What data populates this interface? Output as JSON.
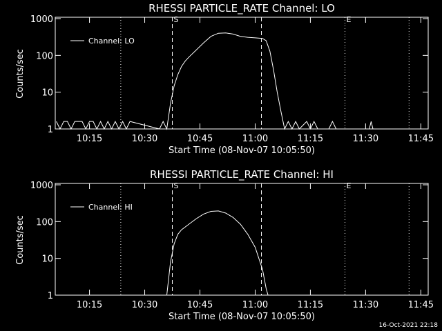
{
  "chart_data": [
    {
      "type": "line",
      "title": "RHESSI PARTICLE_RATE Channel: LO",
      "xlabel": "Start Time (08-Nov-07 10:05:50)",
      "ylabel": "Counts/sec",
      "log_y": true,
      "ylim": [
        1,
        1000
      ],
      "yticks": [
        1,
        10,
        100,
        1000
      ],
      "xlim": [
        605.7,
        707
      ],
      "xticks": [
        {
          "value": 615,
          "label": "10:15"
        },
        {
          "value": 630,
          "label": "10:30"
        },
        {
          "value": 645,
          "label": "10:45"
        },
        {
          "value": 660,
          "label": "11:00"
        },
        {
          "value": 675,
          "label": "11:15"
        },
        {
          "value": 690,
          "label": "11:30"
        },
        {
          "value": 705,
          "label": "11:45"
        }
      ],
      "vlines": [
        {
          "x": 623.5,
          "style": "dotted"
        },
        {
          "x": 637.5,
          "style": "dashed",
          "label": "S"
        },
        {
          "x": 661.7,
          "style": "dashed"
        },
        {
          "x": 684.4,
          "style": "dotted",
          "label": "E"
        },
        {
          "x": 701.8,
          "style": "dotted"
        }
      ],
      "legend": "upper left",
      "series": [
        {
          "name": "Channel: LO",
          "color": "#ffffff",
          "x": [
            606,
            607,
            608,
            609,
            610,
            611,
            612,
            613,
            614,
            615,
            616,
            617,
            618,
            619,
            620,
            621,
            622,
            623,
            624,
            625,
            626,
            634,
            635,
            636,
            637,
            638,
            639,
            640,
            641,
            642,
            644,
            646,
            648,
            650,
            652,
            654,
            656,
            658,
            660,
            662,
            663,
            664,
            665,
            666,
            667,
            668,
            669,
            670,
            671,
            672,
            674,
            675,
            676,
            677,
            679,
            680,
            681,
            682,
            691,
            691.5,
            692,
            706
          ],
          "values": [
            1.6,
            1,
            1.6,
            1.6,
            1,
            1.6,
            1.6,
            1.6,
            1,
            1.6,
            1.6,
            1,
            1.6,
            1,
            1.6,
            1,
            1.6,
            1,
            1.6,
            1,
            1.6,
            1,
            1.6,
            1,
            5,
            15,
            30,
            50,
            70,
            90,
            140,
            220,
            330,
            400,
            410,
            380,
            330,
            310,
            300,
            290,
            250,
            130,
            40,
            10,
            3,
            1,
            1.6,
            1,
            1.6,
            1,
            1.6,
            1,
            1.6,
            1,
            1,
            1,
            1.6,
            1,
            1,
            1.6,
            1,
            1
          ]
        }
      ]
    },
    {
      "type": "line",
      "title": "RHESSI PARTICLE_RATE Channel: HI",
      "xlabel": "Start Time (08-Nov-07 10:05:50)",
      "ylabel": "Counts/sec",
      "log_y": true,
      "ylim": [
        1,
        1000
      ],
      "yticks": [
        1,
        10,
        100,
        1000
      ],
      "xlim": [
        605.7,
        707
      ],
      "xticks": [
        {
          "value": 615,
          "label": "10:15"
        },
        {
          "value": 630,
          "label": "10:30"
        },
        {
          "value": 645,
          "label": "10:45"
        },
        {
          "value": 660,
          "label": "11:00"
        },
        {
          "value": 675,
          "label": "11:15"
        },
        {
          "value": 690,
          "label": "11:30"
        },
        {
          "value": 705,
          "label": "11:45"
        }
      ],
      "vlines": [
        {
          "x": 623.5,
          "style": "dotted"
        },
        {
          "x": 637.5,
          "style": "dashed",
          "label": "S"
        },
        {
          "x": 661.7,
          "style": "dashed"
        },
        {
          "x": 684.4,
          "style": "dotted",
          "label": "E"
        },
        {
          "x": 701.8,
          "style": "dotted"
        }
      ],
      "legend": "upper left",
      "series": [
        {
          "name": "Channel: HI",
          "color": "#ffffff",
          "x": [
            636,
            637,
            638,
            639,
            640,
            642,
            644,
            646,
            648,
            650,
            652,
            654,
            656,
            658,
            660,
            661,
            662,
            663,
            663.5
          ],
          "values": [
            1,
            8,
            25,
            45,
            60,
            85,
            120,
            160,
            190,
            195,
            170,
            130,
            85,
            45,
            20,
            10,
            5,
            1.5,
            1
          ]
        }
      ]
    }
  ],
  "footer": {
    "timestamp": "16-Oct-2021 22:18"
  }
}
